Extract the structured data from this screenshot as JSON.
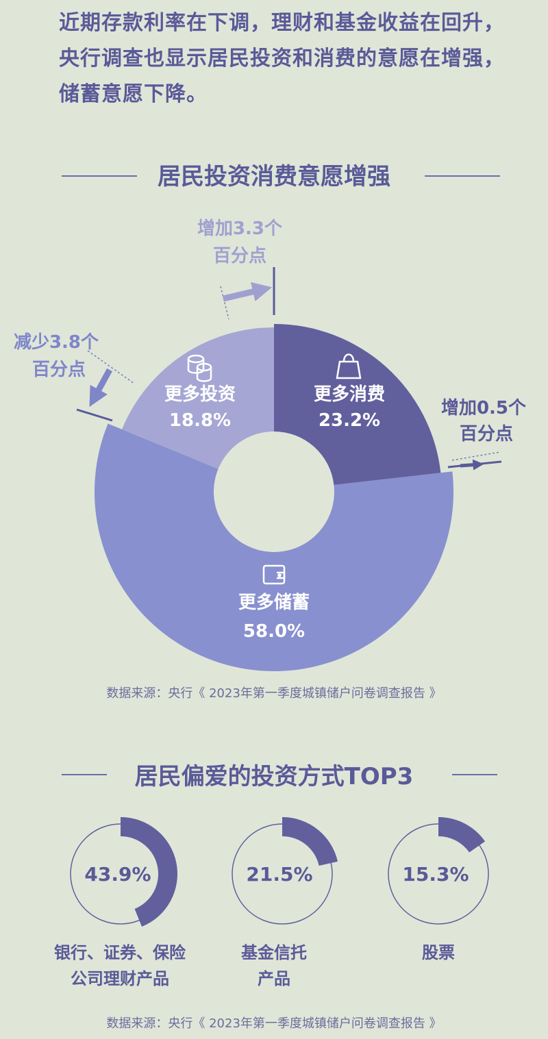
{
  "intro": {
    "lines": [
      "近期存款利率在下调，理财和基金收益在回升，",
      "央行调查也显示居民投资和消费的意愿在增强，",
      "储蓄意愿下降。"
    ]
  },
  "section1": {
    "title": "居民投资消费意愿增强",
    "source": "数据来源：央行《 2023年第一季度城镇储户问卷调查报告 》"
  },
  "section2": {
    "title": "居民偏爱的投资方式TOP3",
    "source": "数据来源：央行《 2023年第一季度城镇储户问卷调查报告 》"
  },
  "colors": {
    "consume": "#625f9d",
    "invest": "#a6a6d4",
    "save": "#8890cf",
    "ring": "#625f9d",
    "text_light": "#ffffff",
    "annot": "#a0a0d0",
    "annot_dark": "#5a5a98"
  },
  "chart_data": [
    {
      "type": "pie",
      "title": "居民投资消费意愿增强",
      "slices": [
        {
          "label": "更多消费",
          "value": 23.2,
          "value_label": "23.2%",
          "icon": "shopping-bag-icon",
          "change_line1": "增加0.5个",
          "change_line2": "百分点"
        },
        {
          "label": "更多储蓄",
          "value": 58.0,
          "value_label": "58.0%",
          "icon": "wallet-icon"
        },
        {
          "label": "更多投资",
          "value": 18.8,
          "value_label": "18.8%",
          "icon": "coins-icon",
          "change_line1": "减少3.8个",
          "change_line2": "百分点"
        }
      ],
      "annotation_top": {
        "line1": "增加3.3个",
        "line2": "百分点"
      }
    },
    {
      "type": "pie",
      "title": "居民偏爱的投资方式TOP3",
      "items": [
        {
          "value": 43.9,
          "value_label": "43.9%",
          "label_line1": "银行、证券、保险",
          "label_line2": "公司理财产品"
        },
        {
          "value": 21.5,
          "value_label": "21.5%",
          "label_line1": "基金信托",
          "label_line2": "产品"
        },
        {
          "value": 15.3,
          "value_label": "15.3%",
          "label_line1": "股票",
          "label_line2": ""
        }
      ]
    }
  ]
}
